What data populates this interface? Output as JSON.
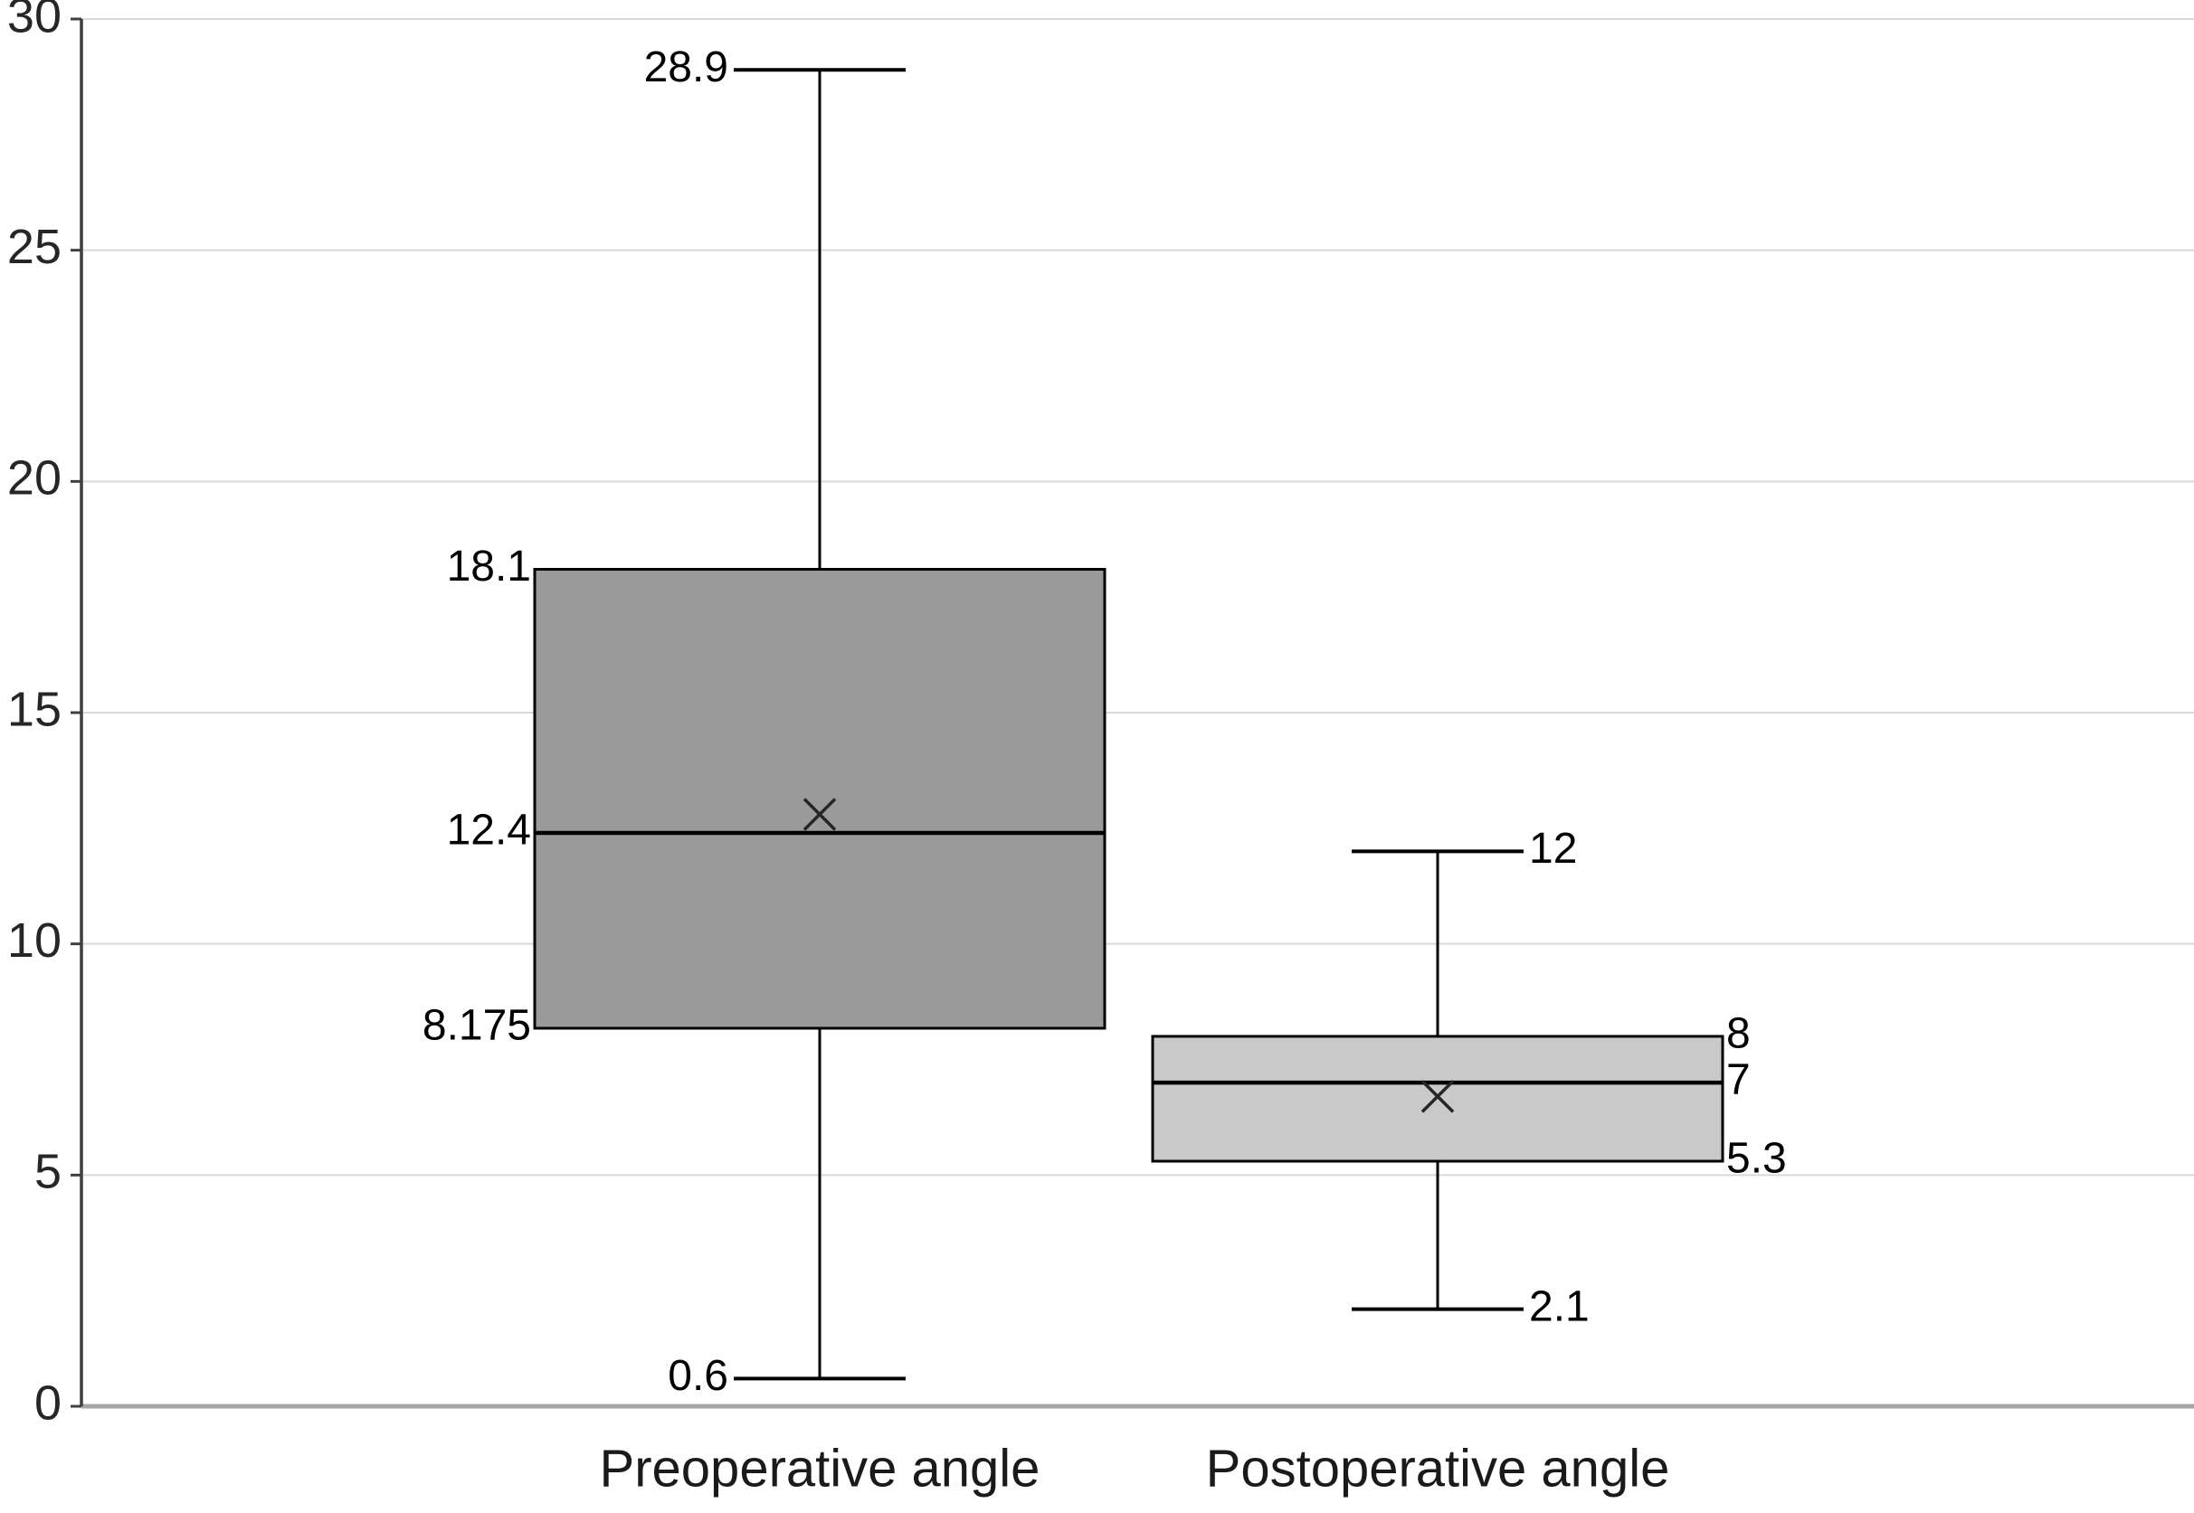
{
  "chart_data": {
    "type": "boxplot",
    "title": "",
    "xlabel": "",
    "ylabel": "",
    "ylim": [
      0,
      30
    ],
    "y_ticks": [
      0,
      5,
      10,
      15,
      20,
      25,
      30
    ],
    "y_tick_labels": [
      "0",
      "5",
      "10",
      "15",
      "20",
      "25",
      "30"
    ],
    "grid": "horizontal",
    "legend": "none",
    "mean_marker": "x",
    "categories": [
      "Preoperative angle",
      "Postoperative angle"
    ],
    "series": [
      {
        "name": "Preoperative angle",
        "min": 0.6,
        "q1": 8.175,
        "median": 12.4,
        "q3": 18.1,
        "max": 28.9,
        "mean": 12.8,
        "labels": {
          "min": "0.6",
          "q1": "8.175",
          "median": "12.4",
          "q3": "18.1",
          "max": "28.9"
        },
        "label_side": "left",
        "box_color": "#9a9a9a"
      },
      {
        "name": "Postoperative angle",
        "min": 2.1,
        "q1": 5.3,
        "median": 7,
        "q3": 8,
        "max": 12,
        "mean": 6.7,
        "labels": {
          "min": "2.1",
          "q1": "5.3",
          "median": "7",
          "q3": "8",
          "max": "12"
        },
        "label_side": "right",
        "box_color": "#c9c9c9"
      }
    ],
    "colors": {
      "background": "#ffffff",
      "grid": "#d9d9d9",
      "baseline": "#a6a6a6",
      "axis": "#3f3f3f",
      "box_border": "#000000",
      "whisker": "#000000",
      "median": "#000000",
      "mean": "#262626",
      "tick_text": "#262626",
      "label_text": "#000000",
      "category_text": "#1a1a1a"
    }
  }
}
